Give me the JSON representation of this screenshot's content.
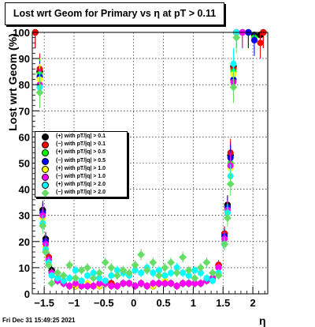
{
  "chart_data": {
    "type": "scatter",
    "title": "Lost wrt Geom for Primary vs  η at pT > 0.11",
    "xlabel": "η",
    "ylabel": "Lost wrt Geom (%)",
    "xlim": [
      -1.7,
      2.25
    ],
    "ylim": [
      0,
      100
    ],
    "x_ticks": [
      "−1.5",
      "−1",
      "−0.5",
      "0",
      "0.5",
      "1",
      "1.5",
      "2"
    ],
    "y_ticks": [
      "0",
      "10",
      "20",
      "30",
      "40",
      "50",
      "60",
      "70",
      "80",
      "90",
      "100"
    ],
    "grid": true,
    "legend_position": "middle-left",
    "series": [
      {
        "name": "(+) with pT/|q| > 0.1",
        "color": "#000000",
        "x": [
          -1.65,
          -1.575,
          -1.525,
          -1.475,
          -1.425,
          -1.375,
          -1.275,
          -1.175,
          -1.075,
          -0.975,
          -0.875,
          -0.775,
          -0.675,
          -0.575,
          -0.475,
          -0.375,
          -0.275,
          -0.175,
          -0.075,
          0.025,
          0.125,
          0.225,
          0.325,
          0.425,
          0.525,
          0.625,
          0.725,
          0.825,
          0.925,
          1.025,
          1.125,
          1.225,
          1.325,
          1.425,
          1.525,
          1.575,
          1.625,
          1.675,
          1.725,
          1.825,
          1.925,
          2.025,
          2.125,
          2.175
        ],
        "y": [
          100,
          85,
          32,
          21,
          14,
          9,
          6,
          4,
          3,
          3,
          3,
          3,
          3,
          3,
          4,
          4,
          3,
          4,
          4,
          3,
          4,
          3,
          3,
          4,
          4,
          4,
          3,
          4,
          4,
          4,
          4,
          5,
          6,
          11,
          23,
          34,
          53,
          87,
          100,
          100,
          100,
          99,
          99,
          100
        ]
      },
      {
        "name": "(−) with pT/|q| > 0.1",
        "color": "#ff0000",
        "x": [
          -1.65,
          -1.575,
          -1.525,
          -1.475,
          -1.425,
          -1.375,
          -1.275,
          -1.175,
          -1.075,
          -0.975,
          -0.875,
          -0.775,
          -0.675,
          -0.575,
          -0.475,
          -0.375,
          -0.275,
          -0.175,
          -0.075,
          0.025,
          0.125,
          0.225,
          0.325,
          0.425,
          0.525,
          0.625,
          0.725,
          0.825,
          0.925,
          1.025,
          1.125,
          1.225,
          1.325,
          1.425,
          1.525,
          1.575,
          1.625,
          1.675,
          1.725,
          1.825,
          1.925,
          2.025,
          2.125,
          2.175
        ],
        "y": [
          100,
          86,
          31,
          20,
          14,
          8,
          6,
          4,
          3,
          3,
          3,
          3,
          3,
          3,
          4,
          4,
          3,
          4,
          4,
          3,
          4,
          3,
          3,
          4,
          4,
          4,
          3,
          4,
          4,
          4,
          4,
          5,
          6,
          11,
          23,
          33,
          54,
          86,
          100,
          100,
          100,
          97,
          96,
          100
        ]
      },
      {
        "name": "(+) with pT/|q| > 0.5",
        "color": "#00ff00",
        "x": [
          -1.575,
          -1.525,
          -1.475,
          -1.425,
          -1.375,
          -1.275,
          -1.175,
          -1.075,
          -0.975,
          -0.875,
          -0.775,
          -0.675,
          -0.575,
          -0.475,
          -0.375,
          -0.275,
          -0.175,
          -0.075,
          0.025,
          0.125,
          0.225,
          0.325,
          0.425,
          0.525,
          0.625,
          0.725,
          0.825,
          0.925,
          1.025,
          1.125,
          1.225,
          1.325,
          1.425,
          1.525,
          1.575,
          1.625,
          1.675,
          1.725,
          1.825,
          1.925,
          2.025
        ],
        "y": [
          84,
          30,
          19,
          13,
          8,
          5,
          4,
          3,
          3,
          3,
          3,
          3,
          3,
          4,
          3,
          3,
          4,
          4,
          3,
          4,
          3,
          3,
          4,
          4,
          4,
          3,
          4,
          4,
          4,
          4,
          5,
          6,
          10,
          22,
          32,
          50,
          85,
          100,
          100,
          100,
          98
        ]
      },
      {
        "name": "(−) with pT/|q| > 0.5",
        "color": "#0000ff",
        "x": [
          -1.575,
          -1.525,
          -1.475,
          -1.425,
          -1.375,
          -1.275,
          -1.175,
          -1.075,
          -0.975,
          -0.875,
          -0.775,
          -0.675,
          -0.575,
          -0.475,
          -0.375,
          -0.275,
          -0.175,
          -0.075,
          0.025,
          0.125,
          0.225,
          0.325,
          0.425,
          0.525,
          0.625,
          0.725,
          0.825,
          0.925,
          1.025,
          1.125,
          1.225,
          1.325,
          1.425,
          1.525,
          1.575,
          1.625,
          1.675,
          1.725,
          1.825,
          1.925,
          2.025
        ],
        "y": [
          83,
          31,
          20,
          13,
          8,
          5,
          4,
          3,
          3,
          3,
          3,
          3,
          3,
          4,
          3,
          3,
          4,
          4,
          3,
          4,
          3,
          3,
          4,
          4,
          4,
          3,
          4,
          4,
          4,
          4,
          5,
          6,
          10,
          22,
          33,
          52,
          82,
          100,
          100,
          100,
          97
        ]
      },
      {
        "name": "(+) with pT/|q| > 1.0",
        "color": "#ffff00",
        "x": [
          -1.575,
          -1.525,
          -1.475,
          -1.425,
          -1.375,
          -1.275,
          -1.175,
          -1.075,
          -0.975,
          -0.875,
          -0.775,
          -0.675,
          -0.575,
          -0.475,
          -0.375,
          -0.275,
          -0.175,
          -0.075,
          0.025,
          0.125,
          0.225,
          0.325,
          0.425,
          0.525,
          0.625,
          0.725,
          0.825,
          0.925,
          1.025,
          1.125,
          1.225,
          1.325,
          1.425,
          1.525,
          1.575,
          1.625,
          1.675,
          1.725,
          1.825
        ],
        "y": [
          82,
          29,
          18,
          12,
          8,
          6,
          4,
          3,
          3,
          3,
          4,
          3,
          3,
          4,
          3,
          3,
          4,
          4,
          3,
          4,
          3,
          3,
          4,
          5,
          4,
          3,
          4,
          4,
          4,
          4,
          5,
          6,
          10,
          21,
          32,
          48,
          84,
          100,
          100
        ]
      },
      {
        "name": "(−) with pT/|q| > 1.0",
        "color": "#ff00ff",
        "x": [
          -1.575,
          -1.525,
          -1.475,
          -1.425,
          -1.375,
          -1.275,
          -1.175,
          -1.075,
          -0.975,
          -0.875,
          -0.775,
          -0.675,
          -0.575,
          -0.475,
          -0.375,
          -0.275,
          -0.175,
          -0.075,
          0.025,
          0.125,
          0.225,
          0.325,
          0.425,
          0.525,
          0.625,
          0.725,
          0.825,
          0.925,
          1.025,
          1.125,
          1.225,
          1.325,
          1.425,
          1.525,
          1.575,
          1.625,
          1.675,
          1.725,
          1.825
        ],
        "y": [
          80,
          30,
          19,
          13,
          8,
          5,
          4,
          3,
          4,
          3,
          3,
          3,
          4,
          4,
          3,
          3,
          4,
          4,
          3,
          4,
          3,
          4,
          4,
          4,
          4,
          3,
          4,
          4,
          4,
          4,
          5,
          6,
          10,
          21,
          32,
          49,
          81,
          100,
          100
        ]
      },
      {
        "name": "(+) with pT/|q| > 2.0",
        "color": "#00ffff",
        "x": [
          -1.575,
          -1.525,
          -1.475,
          -1.425,
          -1.375,
          -1.275,
          -1.175,
          -1.075,
          -0.975,
          -0.875,
          -0.775,
          -0.675,
          -0.575,
          -0.475,
          -0.375,
          -0.275,
          -0.175,
          -0.075,
          0.025,
          0.125,
          0.225,
          0.325,
          0.425,
          0.525,
          0.625,
          0.725,
          0.825,
          0.925,
          1.025,
          1.125,
          1.225,
          1.325,
          1.425,
          1.525,
          1.575,
          1.625,
          1.675,
          1.725
        ],
        "y": [
          79,
          27,
          17,
          12,
          7,
          6,
          5,
          6,
          9,
          5,
          7,
          8,
          6,
          5,
          7,
          9,
          8,
          7,
          9,
          8,
          10,
          8,
          9,
          7,
          8,
          10,
          8,
          7,
          9,
          8,
          6,
          5,
          8,
          19,
          31,
          45,
          88,
          100
        ]
      },
      {
        "name": "(−) with pT/|q| > 2.0",
        "color": "#66dd66",
        "x": [
          -1.575,
          -1.525,
          -1.475,
          -1.425,
          -1.375,
          -1.275,
          -1.175,
          -1.075,
          -0.975,
          -0.875,
          -0.775,
          -0.675,
          -0.575,
          -0.475,
          -0.375,
          -0.275,
          -0.175,
          -0.075,
          0.025,
          0.125,
          0.225,
          0.325,
          0.425,
          0.525,
          0.625,
          0.725,
          0.825,
          0.925,
          1.025,
          1.125,
          1.225,
          1.325,
          1.425,
          1.525,
          1.575,
          1.625,
          1.675,
          1.725
        ],
        "y": [
          77,
          26,
          16,
          11,
          4,
          8,
          7,
          11,
          6,
          9,
          10,
          6,
          8,
          12,
          10,
          7,
          9,
          8,
          11,
          15,
          9,
          12,
          7,
          10,
          12,
          8,
          14,
          9,
          6,
          10,
          12,
          8,
          7,
          19,
          29,
          42,
          79,
          98
        ]
      }
    ]
  },
  "footer": {
    "timestamp": "Fri Dec 31 15:49:25 2021"
  }
}
